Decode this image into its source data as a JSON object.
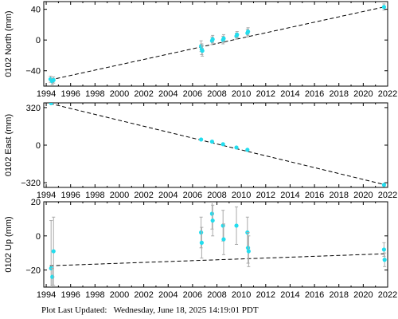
{
  "footer": {
    "label": "Plot Last Updated:",
    "timestamp": "Wednesday, June 18, 2025 14:19:01 PDT"
  },
  "colors": {
    "point": "#22ddee",
    "errorbar": "#aaaaaa",
    "trend": "#000000",
    "frame": "#000000"
  },
  "chart_data": [
    {
      "type": "scatter",
      "ylabel": "0102 North (mm)",
      "xlim": [
        1993.8,
        2022.0
      ],
      "ylim": [
        -60,
        50
      ],
      "xticks": [
        1994,
        1996,
        1998,
        2000,
        2002,
        2004,
        2006,
        2008,
        2010,
        2012,
        2014,
        2016,
        2018,
        2020,
        2022
      ],
      "yticks": [
        -40,
        0,
        40
      ],
      "trend": {
        "x": [
          1994.3,
          2021.7
        ],
        "y": [
          -52,
          43
        ]
      },
      "series": [
        {
          "x": [
            1994.35,
            1994.5,
            1994.6,
            2006.7,
            2006.75,
            2006.8,
            2007.6,
            2007.65,
            2008.5,
            2008.55,
            2009.6,
            2009.65,
            2010.5,
            2010.55,
            2021.7
          ],
          "y": [
            -51,
            -54,
            -52,
            -8,
            -12,
            -14,
            -1,
            1,
            0,
            2,
            5,
            7,
            9,
            11,
            43
          ],
          "err": [
            4,
            4,
            4,
            7,
            7,
            7,
            5,
            5,
            5,
            5,
            4,
            4,
            5,
            5,
            4
          ]
        }
      ]
    },
    {
      "type": "scatter",
      "ylabel": "0102 East (mm)",
      "xlim": [
        1993.8,
        2022.0
      ],
      "ylim": [
        -360,
        360
      ],
      "xticks": [
        1994,
        1996,
        1998,
        2000,
        2002,
        2004,
        2006,
        2008,
        2010,
        2012,
        2014,
        2016,
        2018,
        2020,
        2022
      ],
      "yticks": [
        -320,
        0,
        320
      ],
      "trend": {
        "x": [
          1994.3,
          2021.7
        ],
        "y": [
          355,
          -335
        ]
      },
      "series": [
        {
          "x": [
            1994.4,
            2006.7,
            2007.6,
            2008.5,
            2009.6,
            2010.5,
            2021.7
          ],
          "y": [
            358,
            48,
            30,
            8,
            -20,
            -40,
            -338
          ],
          "err": [
            6,
            6,
            6,
            6,
            6,
            6,
            6
          ]
        }
      ]
    },
    {
      "type": "scatter",
      "ylabel": "0102 Up (mm)",
      "xlim": [
        1993.8,
        2022.0
      ],
      "ylim": [
        -30,
        20
      ],
      "xticks": [
        1994,
        1996,
        1998,
        2000,
        2002,
        2004,
        2006,
        2008,
        2010,
        2012,
        2014,
        2016,
        2018,
        2020,
        2022
      ],
      "yticks": [
        -20,
        0,
        20
      ],
      "trend": {
        "x": [
          1994.3,
          2021.7
        ],
        "y": [
          -17.5,
          -10.5
        ]
      },
      "series": [
        {
          "x": [
            1994.4,
            1994.5,
            1994.6,
            2006.7,
            2006.75,
            2007.6,
            2007.65,
            2008.5,
            2008.55,
            2009.6,
            2010.5,
            2010.55,
            2010.6,
            2021.7,
            2021.75
          ],
          "y": [
            -19,
            -24,
            -9,
            2,
            -4,
            13,
            9,
            6,
            -2,
            6,
            2,
            -7,
            -9,
            -8,
            -14
          ],
          "err": [
            28,
            5,
            20,
            9,
            9,
            9,
            9,
            9,
            9,
            11,
            9,
            9,
            9,
            4,
            4
          ]
        }
      ]
    }
  ]
}
